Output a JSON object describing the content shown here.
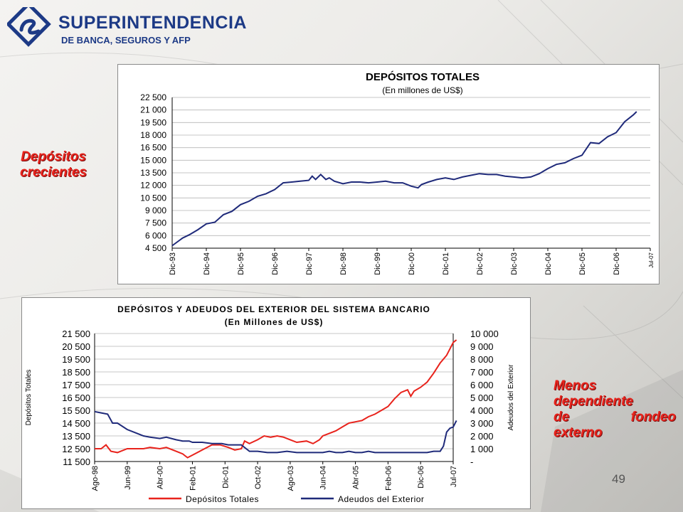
{
  "logo": {
    "line1": "SUPERINTENDENCIA",
    "line2": "DE BANCA, SEGUROS Y AFP"
  },
  "side_labels": {
    "depositos": [
      "Depósitos",
      "crecientes"
    ],
    "menos": [
      "Menos",
      "dependiente",
      "de",
      "fondeo",
      "externo"
    ]
  },
  "page_number": "49",
  "colors": {
    "navy": "#1f2a7a",
    "red": "#e8231c",
    "brand_blue": "#1d3a86"
  },
  "chart_data": [
    {
      "type": "line",
      "title": "DEPÓSITOS TOTALES",
      "subtitle": "(En millones de US$)",
      "xlabel": "",
      "ylabel": "",
      "ylim": [
        4500,
        22500
      ],
      "yticks": [
        "22 500",
        "21 000",
        "19 500",
        "18 000",
        "16 500",
        "15 000",
        "13 500",
        "12 000",
        "10 500",
        "9 000",
        "7 500",
        "6 000",
        "4 500"
      ],
      "ytick_values": [
        22500,
        21000,
        19500,
        18000,
        16500,
        15000,
        13500,
        12000,
        10500,
        9000,
        7500,
        6000,
        4500
      ],
      "xticks": [
        "Dic-93",
        "Dic-94",
        "Dic-95",
        "Dic-96",
        "Dic-97",
        "Dic-98",
        "Dic-99",
        "Dic-00",
        "Dic-01",
        "Dic-02",
        "Dic-03",
        "Dic-04",
        "Dic-05",
        "Dic-06",
        "Jul-07"
      ],
      "grid": true,
      "series": [
        {
          "name": "",
          "color": "#1f2a7a",
          "x": [
            0,
            0.3,
            0.5,
            0.75,
            1,
            1.25,
            1.5,
            1.75,
            2,
            2.25,
            2.5,
            2.75,
            3,
            3.25,
            3.5,
            3.75,
            4,
            4.1,
            4.2,
            4.35,
            4.5,
            4.6,
            4.75,
            5,
            5.25,
            5.5,
            5.75,
            6,
            6.25,
            6.5,
            6.75,
            7,
            7.2,
            7.3,
            7.5,
            7.75,
            8,
            8.25,
            8.5,
            8.75,
            9,
            9.25,
            9.5,
            9.75,
            10,
            10.25,
            10.5,
            10.75,
            11,
            11.25,
            11.5,
            11.75,
            12,
            12.25,
            12.5,
            12.75,
            13,
            13.25,
            13.5,
            13.6
          ],
          "y": [
            4800,
            5700,
            6100,
            6700,
            7400,
            7600,
            8500,
            8900,
            9700,
            10100,
            10700,
            11000,
            11500,
            12300,
            12400,
            12500,
            12600,
            13100,
            12700,
            13300,
            12700,
            12900,
            12500,
            12200,
            12400,
            12400,
            12300,
            12400,
            12500,
            12300,
            12300,
            11900,
            11700,
            12100,
            12400,
            12700,
            12900,
            12700,
            13000,
            13200,
            13400,
            13300,
            13300,
            13100,
            13000,
            12900,
            13000,
            13400,
            14000,
            14500,
            14700,
            15200,
            15600,
            17100,
            17000,
            17800,
            18300,
            19600,
            20400,
            20800
          ]
        }
      ]
    },
    {
      "type": "line",
      "title": "DEPÓSITOS Y ADEUDOS DEL EXTERIOR DEL SISTEMA BANCARIO",
      "subtitle": "(En Millones de US$)",
      "ylabel": "Depósitos Totales",
      "y2label": "Adeudos del Exterior",
      "ylim": [
        11500,
        21500
      ],
      "y2lim": [
        0,
        10000
      ],
      "yticks": [
        "21 500",
        "20 500",
        "19 500",
        "18 500",
        "17 500",
        "16 500",
        "15 500",
        "14 500",
        "13 500",
        "12 500",
        "11 500"
      ],
      "ytick_values": [
        21500,
        20500,
        19500,
        18500,
        17500,
        16500,
        15500,
        14500,
        13500,
        12500,
        11500
      ],
      "y2ticks": [
        "10 000",
        "9 000",
        "8 000",
        "7 000",
        "6 000",
        "5 000",
        "4 000",
        "3 000",
        "2 000",
        "1 000",
        "-"
      ],
      "xticks": [
        "Ago-98",
        "Jun-99",
        "Abr-00",
        "Feb-01",
        "Dic-01",
        "Oct-02",
        "Ago-03",
        "Jun-04",
        "Abr-05",
        "Feb-06",
        "Dic-06",
        "Jul-07"
      ],
      "grid": true,
      "legend": "bottom",
      "series": [
        {
          "name": "Depósitos Totales",
          "axis": "left",
          "color": "#e8231c",
          "x": [
            0,
            0.2,
            0.35,
            0.5,
            0.7,
            1,
            1.3,
            1.5,
            1.7,
            2,
            2.2,
            2.5,
            2.7,
            2.85,
            3,
            3.3,
            3.6,
            3.85,
            4.1,
            4.3,
            4.5,
            4.6,
            4.75,
            5,
            5.2,
            5.4,
            5.6,
            5.8,
            6,
            6.2,
            6.5,
            6.7,
            6.9,
            7,
            7.2,
            7.4,
            7.6,
            7.8,
            8,
            8.2,
            8.4,
            8.6,
            8.8,
            9,
            9.2,
            9.4,
            9.6,
            9.7,
            9.8,
            10,
            10.2,
            10.4,
            10.6,
            10.8,
            11,
            11.1
          ],
          "y": [
            12500,
            12500,
            12800,
            12300,
            12200,
            12500,
            12500,
            12500,
            12600,
            12500,
            12600,
            12300,
            12100,
            11800,
            12000,
            12400,
            12800,
            12800,
            12600,
            12400,
            12500,
            13100,
            12900,
            13200,
            13500,
            13400,
            13500,
            13400,
            13200,
            13000,
            13100,
            12900,
            13200,
            13500,
            13700,
            13900,
            14200,
            14500,
            14600,
            14700,
            15000,
            15200,
            15500,
            15800,
            16400,
            16900,
            17100,
            16600,
            17000,
            17300,
            17700,
            18400,
            19200,
            19800,
            20800,
            21000
          ]
        },
        {
          "name": "Adeudos del Exterior",
          "axis": "right",
          "color": "#1f2a7a",
          "x": [
            0,
            0.2,
            0.4,
            0.55,
            0.7,
            1,
            1.3,
            1.5,
            1.7,
            2,
            2.2,
            2.5,
            2.7,
            2.9,
            3,
            3.3,
            3.6,
            3.9,
            4.1,
            4.3,
            4.5,
            4.75,
            5,
            5.3,
            5.6,
            5.9,
            6.2,
            6.5,
            6.8,
            7,
            7.2,
            7.4,
            7.6,
            7.8,
            8,
            8.2,
            8.4,
            8.6,
            8.8,
            9,
            9.2,
            9.4,
            9.6,
            9.8,
            10,
            10.2,
            10.4,
            10.6,
            10.7,
            10.8,
            10.9,
            11,
            11.1
          ],
          "y": [
            3900,
            3800,
            3700,
            3000,
            3000,
            2500,
            2200,
            2000,
            1900,
            1800,
            1900,
            1700,
            1600,
            1600,
            1500,
            1500,
            1400,
            1400,
            1300,
            1300,
            1300,
            800,
            800,
            700,
            700,
            800,
            700,
            700,
            700,
            700,
            800,
            700,
            700,
            800,
            700,
            700,
            800,
            700,
            700,
            700,
            700,
            700,
            700,
            700,
            700,
            700,
            800,
            800,
            1200,
            2300,
            2600,
            2700,
            3200
          ]
        }
      ]
    }
  ]
}
